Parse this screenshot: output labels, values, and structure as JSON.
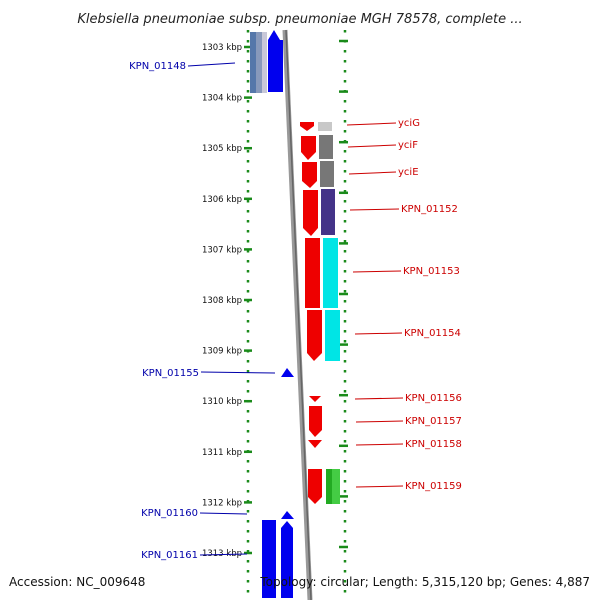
{
  "title": "Klebsiella pneumoniae subsp. pneumoniae MGH 78578, complete ...",
  "footer": {
    "accession": "Accession: NC_009648",
    "topology": "Topology: circular; Length: 5,315,120 bp; Genes: 4,887"
  },
  "colors": {
    "left_label": "#0000aa",
    "right_label": "#cc0000",
    "dots": "#1a8a1a",
    "strand_minus": "#0000ee",
    "strand_plus": "#ee0000",
    "backbone": "#8a8a8a"
  },
  "scale": {
    "unit": "kbp",
    "ticks": [
      {
        "value": 1303,
        "label": "1303 kbp"
      },
      {
        "value": 1304,
        "label": "1304 kbp"
      },
      {
        "value": 1305,
        "label": "1305 kbp"
      },
      {
        "value": 1306,
        "label": "1306 kbp"
      },
      {
        "value": 1307,
        "label": "1307 kbp"
      },
      {
        "value": 1308,
        "label": "1308 kbp"
      },
      {
        "value": 1309,
        "label": "1309 kbp"
      },
      {
        "value": 1310,
        "label": "1310 kbp"
      },
      {
        "value": 1311,
        "label": "1311 kbp"
      },
      {
        "value": 1312,
        "label": "1312 kbp"
      },
      {
        "value": 1313,
        "label": "1313 kbp"
      }
    ]
  },
  "genes_left": [
    {
      "name": "KPN_01148"
    },
    {
      "name": "KPN_01155"
    },
    {
      "name": "KPN_01160"
    },
    {
      "name": "KPN_01161"
    }
  ],
  "genes_right": [
    {
      "name": "yciG"
    },
    {
      "name": "yciF"
    },
    {
      "name": "yciE"
    },
    {
      "name": "KPN_01152"
    },
    {
      "name": "KPN_01153"
    },
    {
      "name": "KPN_01154"
    },
    {
      "name": "KPN_01156"
    },
    {
      "name": "KPN_01157"
    },
    {
      "name": "KPN_01158"
    },
    {
      "name": "KPN_01159"
    }
  ]
}
